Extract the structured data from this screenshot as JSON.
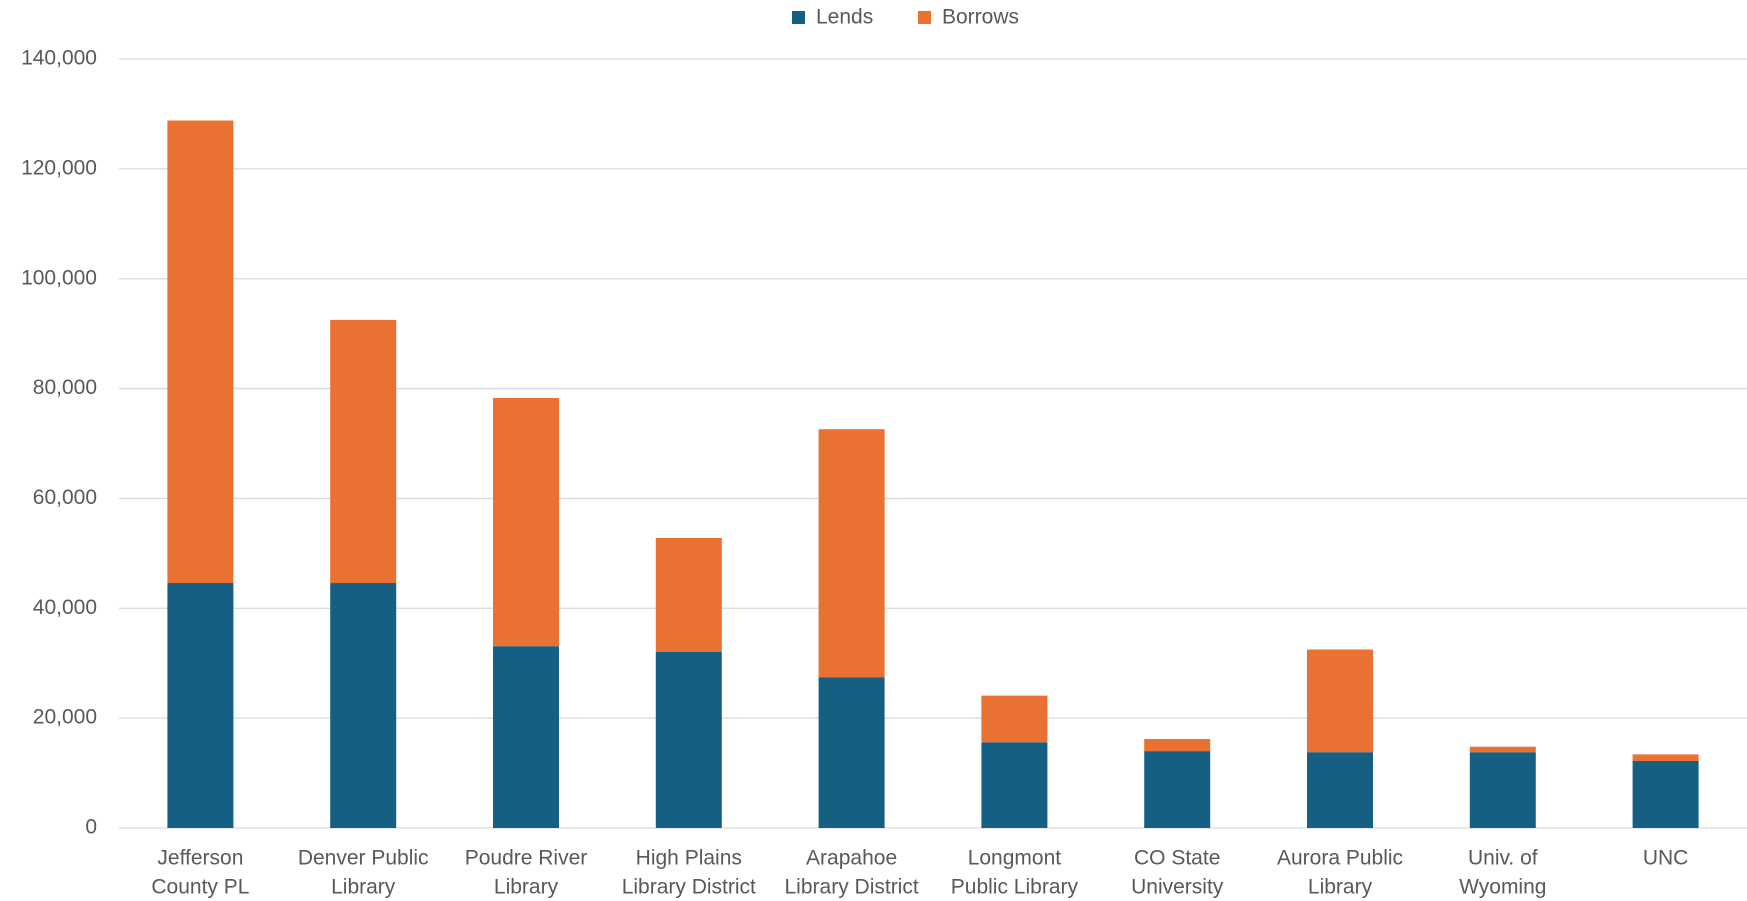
{
  "chart_data": {
    "type": "stacked_bar",
    "categories": [
      [
        "Jefferson",
        "County PL"
      ],
      [
        "Denver Public",
        "Library"
      ],
      [
        "Poudre River",
        "Library"
      ],
      [
        "High Plains",
        "Library District"
      ],
      [
        "Arapahoe",
        "Library District"
      ],
      [
        "Longmont",
        "Public Library"
      ],
      [
        "CO State",
        "University"
      ],
      [
        "Aurora Public",
        "Library"
      ],
      [
        "Univ. of",
        "Wyoming"
      ],
      [
        "UNC"
      ]
    ],
    "series": [
      {
        "name": "Lends",
        "color": "#156082",
        "values": [
          44600,
          44600,
          33100,
          32100,
          27400,
          15600,
          14000,
          13800,
          13800,
          12200
        ]
      },
      {
        "name": "Borrows",
        "color": "#e97132",
        "values": [
          84200,
          47900,
          45200,
          20700,
          45200,
          8500,
          2200,
          18700,
          1000,
          1200
        ]
      }
    ],
    "ylim": [
      0,
      140000
    ],
    "yticks": [
      0,
      {
        "value": 20000,
        "label": "20,000"
      },
      {
        "value": 40000,
        "label": "40,000"
      },
      {
        "value": 60000,
        "label": "60,000"
      },
      {
        "value": 80000,
        "label": "80,000"
      },
      {
        "value": 100000,
        "label": "100,000"
      },
      {
        "value": 120000,
        "label": "120,000"
      },
      {
        "value": 140000,
        "label": "140,000"
      }
    ],
    "grid": true,
    "legend": "top"
  }
}
